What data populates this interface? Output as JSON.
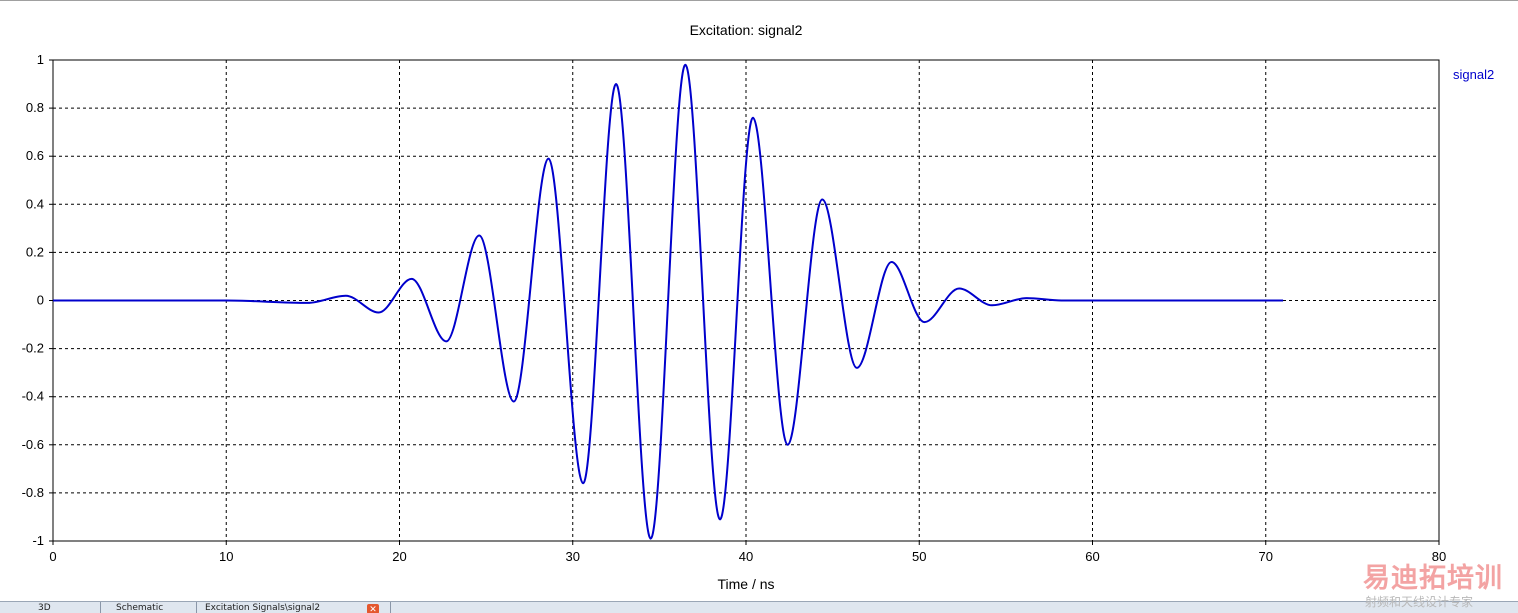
{
  "chart_data": {
    "type": "line",
    "title": "Excitation: signal2",
    "xlabel": "Time / ns",
    "ylabel": "",
    "xlim": [
      0,
      80
    ],
    "ylim": [
      -1,
      1
    ],
    "xticks": [
      0,
      10,
      20,
      30,
      40,
      50,
      60,
      70,
      80
    ],
    "yticks": [
      -1,
      -0.8,
      -0.6,
      -0.4,
      -0.2,
      0,
      0.2,
      0.4,
      0.6,
      0.8,
      1
    ],
    "grid": true,
    "legend": "right",
    "line_color": "#0000cc",
    "series": [
      {
        "name": "signal2",
        "x": [
          0,
          10,
          14.7,
          16.9,
          18.8,
          20.7,
          22.7,
          24.6,
          26.6,
          28.6,
          30.6,
          32.5,
          34.5,
          36.5,
          38.5,
          40.4,
          42.4,
          44.4,
          46.4,
          48.4,
          50.3,
          52.3,
          54.2,
          56.2,
          58.2,
          60,
          71
        ],
        "y": [
          0,
          0,
          -0.01,
          0.02,
          -0.05,
          0.09,
          -0.17,
          0.27,
          -0.42,
          0.59,
          -0.76,
          0.9,
          -0.99,
          0.98,
          -0.91,
          0.76,
          -0.6,
          0.42,
          -0.28,
          0.16,
          -0.09,
          0.05,
          -0.02,
          0.01,
          0,
          0,
          0
        ]
      }
    ]
  },
  "tabs": [
    {
      "label": "3D"
    },
    {
      "label": "Schematic"
    },
    {
      "label": "Excitation Signals\\signal2"
    }
  ],
  "watermark": {
    "main": "易迪拓培训",
    "sub": "射频和天线设计专家"
  }
}
